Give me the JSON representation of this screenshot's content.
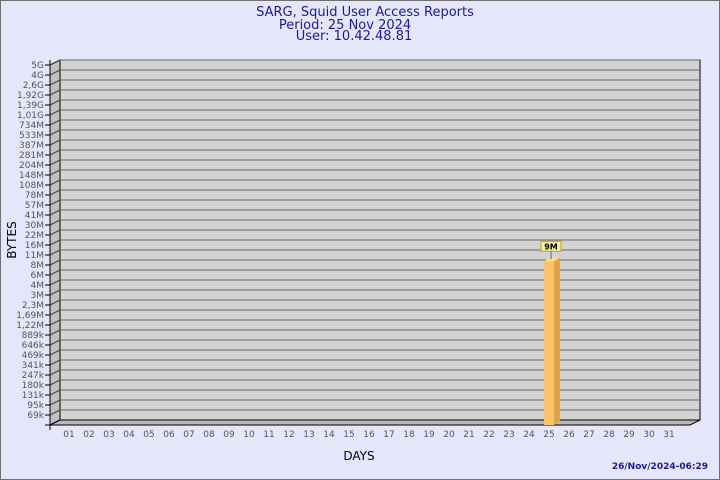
{
  "chart_data": {
    "type": "bar",
    "title": "SARG, Squid User Access Reports",
    "subtitle": [
      "Period: 25 Nov 2024",
      "User: 10.42.48.81"
    ],
    "xlabel": "DAYS",
    "ylabel": "BYTES",
    "yscale": "log",
    "ytick_labels": [
      "5G",
      "4G",
      "2,6G",
      "1,92G",
      "1,39G",
      "1,01G",
      "734M",
      "533M",
      "387M",
      "281M",
      "204M",
      "148M",
      "108M",
      "78M",
      "57M",
      "41M",
      "30M",
      "22M",
      "16M",
      "11M",
      "8M",
      "6M",
      "4M",
      "3M",
      "2,3M",
      "1,69M",
      "1,22M",
      "889k",
      "646k",
      "469k",
      "341k",
      "247k",
      "180k",
      "131k",
      "95k",
      "69k"
    ],
    "categories": [
      "01",
      "02",
      "03",
      "04",
      "05",
      "06",
      "07",
      "08",
      "09",
      "10",
      "11",
      "12",
      "13",
      "14",
      "15",
      "16",
      "17",
      "18",
      "19",
      "20",
      "21",
      "22",
      "23",
      "24",
      "25",
      "26",
      "27",
      "28",
      "29",
      "30",
      "31"
    ],
    "bars": [
      {
        "category": "25",
        "value": 9000000,
        "label": "9M"
      }
    ],
    "grid": true,
    "colors": {
      "bar": "#ffc266",
      "bar_side": "#e0a448",
      "bar_top": "#ffe08a",
      "plot": "#d3d3d3",
      "background": "#e6e6fa",
      "title": "#1a1a9a"
    }
  },
  "timestamp": "26/Nov/2024-06:29"
}
